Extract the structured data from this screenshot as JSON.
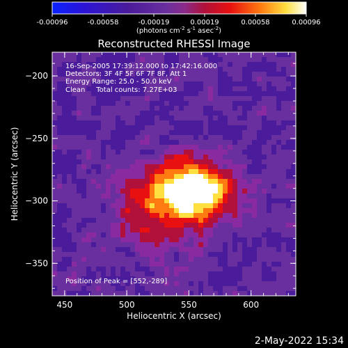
{
  "colorbar": {
    "tick_labels": [
      "-0.00096",
      "-0.00058",
      "-0.00019",
      "0.00019",
      "0.00058",
      "0.00096"
    ],
    "unit_label": "(photons cm",
    "unit_exp1": "-2",
    "unit_mid": " s",
    "unit_exp2": "-1",
    "unit_asec": " asec",
    "unit_exp3": "-2",
    "unit_close": ")",
    "palette": [
      "#0a22ff",
      "#2a14d8",
      "#4a1b9a",
      "#6a2f9e",
      "#8a2aa0",
      "#b0103a",
      "#e81010",
      "#ff7a10",
      "#ffe040",
      "#ffffff"
    ]
  },
  "image": {
    "title": "Reconstructed RHESSI Image",
    "info_lines": [
      "16-Sep-2005 17:39:12.000 to 17:42:16.000",
      "Detectors: 3F 4F 5F 6F 7F 8F, Att 1",
      "Energy Range: 25.0 - 50.0 keV",
      "Clean     Total counts: 7.27E+03"
    ],
    "peak_label": "Position of Peak = [552,-289]",
    "peak_x": 552,
    "peak_y": -289,
    "xlabel": "Heliocentric X (arcsec)",
    "ylabel": "Heliocentric Y (arcsec)",
    "xticks": [
      "450",
      "500",
      "550",
      "600"
    ],
    "yticks": [
      "-200",
      "-250",
      "-300",
      "-350"
    ],
    "xlim": [
      440,
      636
    ],
    "ylim": [
      -376,
      -181
    ]
  },
  "footer": {
    "date": "2-May-2022 15:34"
  }
}
